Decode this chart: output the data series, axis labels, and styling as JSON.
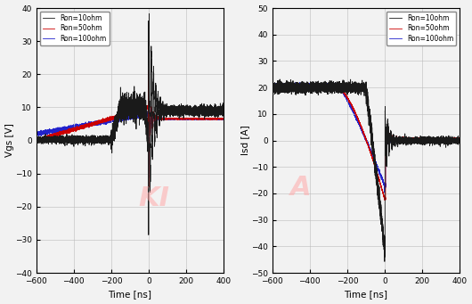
{
  "background_color": "#f0f0f0",
  "left_plot": {
    "xlabel": "Time [ns]",
    "ylabel": "Vgs [V]",
    "xlim": [
      -600,
      400
    ],
    "ylim": [
      -40,
      40
    ],
    "xticks": [
      -600,
      -400,
      -200,
      0,
      200,
      400
    ],
    "yticks": [
      -40,
      -30,
      -20,
      -10,
      0,
      10,
      20,
      30,
      40
    ],
    "legend": [
      "Ron=10ohm",
      "Ron=50ohm",
      "Ron=100ohm"
    ],
    "watermark": "KI",
    "watermark_color": "#ffaaaa"
  },
  "right_plot": {
    "xlabel": "Time [ns]",
    "ylabel": "Isd [A]",
    "xlim": [
      -600,
      400
    ],
    "ylim": [
      -50,
      50
    ],
    "xticks": [
      -600,
      -400,
      -200,
      0,
      200,
      400
    ],
    "yticks": [
      -50,
      -40,
      -30,
      -20,
      -10,
      0,
      10,
      20,
      30,
      40,
      50
    ],
    "legend": [
      "Ron=10ohm",
      "Ron=50ohm",
      "Ron=100ohm"
    ],
    "watermark": "A",
    "watermark_color": "#ffaaaa"
  }
}
